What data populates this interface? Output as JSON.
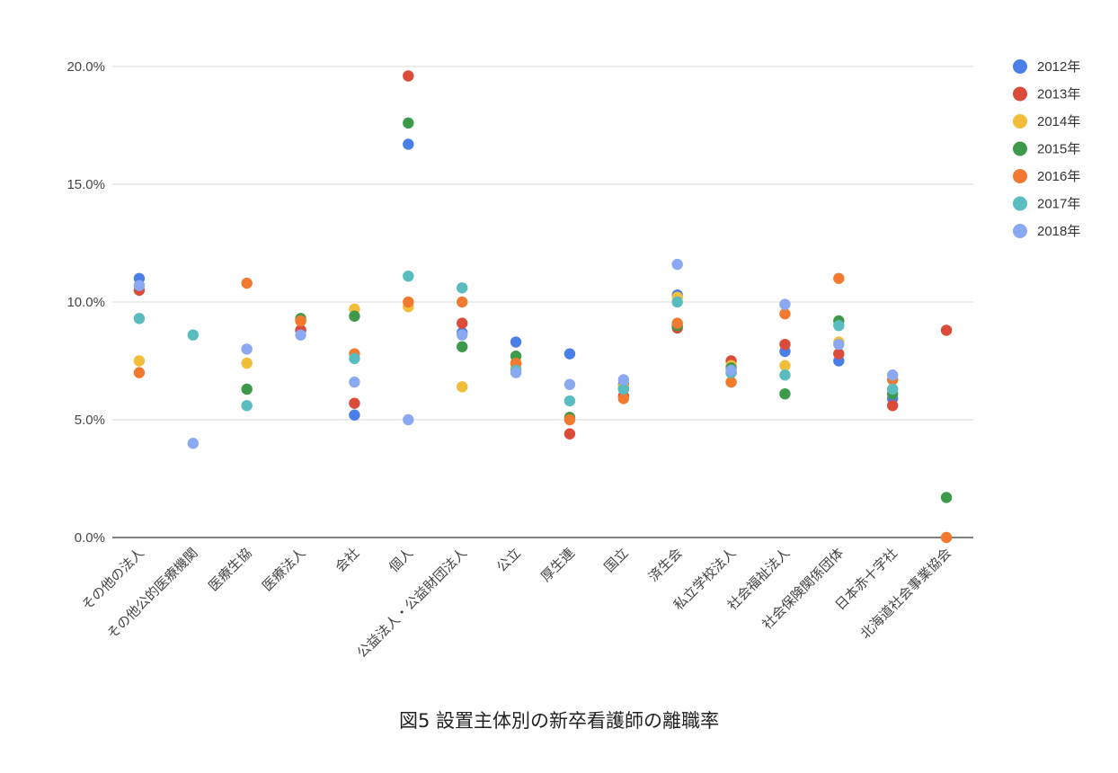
{
  "caption": "図5 設置主体別の新卒看護師の離職率",
  "chart_data": {
    "type": "scatter",
    "title": "",
    "xlabel": "",
    "ylabel": "",
    "ylim": [
      0,
      20
    ],
    "yticks": [
      0,
      5,
      10,
      15,
      20
    ],
    "ytick_labels": [
      "0.0%",
      "5.0%",
      "10.0%",
      "15.0%",
      "20.0%"
    ],
    "grid": true,
    "legend": "right",
    "categories": [
      "その他の法人",
      "その他公的医療機関",
      "医療生協",
      "医療法人",
      "会社",
      "個人",
      "公益法人・公益財団法人",
      "公立",
      "厚生連",
      "国立",
      "済生会",
      "私立学校法人",
      "社会福祉法人",
      "社会保険関係団体",
      "日本赤十字社",
      "北海道社会事業協会"
    ],
    "series": [
      {
        "name": "2012年",
        "color": "#4a7fe8",
        "values": [
          11.0,
          null,
          null,
          8.8,
          5.2,
          16.7,
          8.7,
          8.3,
          7.8,
          6.5,
          10.3,
          7.0,
          7.9,
          7.5,
          5.9,
          null
        ]
      },
      {
        "name": "2013年",
        "color": "#db4b3a",
        "values": [
          10.5,
          null,
          null,
          8.8,
          5.7,
          19.6,
          9.1,
          7.4,
          4.4,
          6.0,
          8.9,
          7.5,
          8.2,
          7.8,
          5.6,
          8.8
        ]
      },
      {
        "name": "2014年",
        "color": "#f2bd38",
        "values": [
          7.5,
          null,
          7.4,
          9.2,
          9.7,
          9.8,
          6.4,
          7.2,
          5.1,
          6.4,
          10.2,
          7.3,
          7.3,
          8.3,
          6.3,
          null
        ]
      },
      {
        "name": "2015年",
        "color": "#3c9a4a",
        "values": [
          null,
          null,
          6.3,
          9.3,
          9.4,
          17.6,
          8.1,
          7.7,
          5.1,
          6.3,
          9.0,
          7.2,
          6.1,
          9.2,
          6.1,
          1.7
        ]
      },
      {
        "name": "2016年",
        "color": "#f17a30",
        "values": [
          7.0,
          null,
          10.8,
          9.2,
          7.8,
          10.0,
          10.0,
          7.4,
          5.0,
          5.9,
          9.1,
          6.6,
          9.5,
          11.0,
          6.7,
          0.0
        ]
      },
      {
        "name": "2017年",
        "color": "#59bcbf",
        "values": [
          9.3,
          8.6,
          5.6,
          null,
          7.6,
          11.1,
          10.6,
          7.1,
          5.8,
          6.3,
          10.0,
          7.0,
          6.9,
          9.0,
          6.3,
          null
        ]
      },
      {
        "name": "2018年",
        "color": "#8aa9f0",
        "values": [
          10.7,
          4.0,
          8.0,
          8.6,
          6.6,
          5.0,
          8.6,
          7.0,
          6.5,
          6.7,
          11.6,
          7.1,
          9.9,
          8.2,
          6.9,
          null
        ]
      }
    ]
  }
}
